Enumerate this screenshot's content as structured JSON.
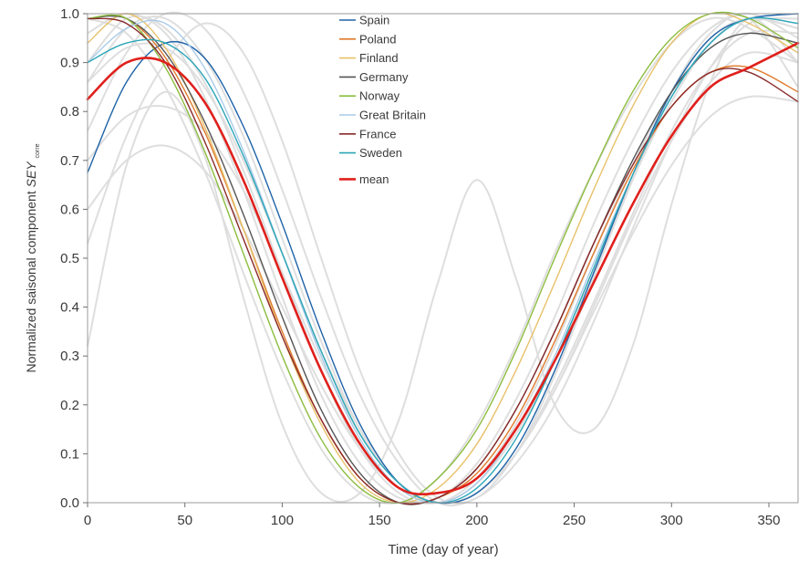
{
  "chart_data": {
    "type": "line",
    "title": "",
    "xlabel": "Time (day of year)",
    "ylabel_main": "Normalized saisonal component ",
    "ylabel_symbol": "SEY",
    "ylabel_subscript": "corre",
    "xlim": [
      0,
      365
    ],
    "ylim": [
      0.0,
      1.0
    ],
    "xticks": [
      0,
      50,
      100,
      150,
      200,
      250,
      300,
      350
    ],
    "yticks": [
      0.0,
      0.1,
      0.2,
      0.3,
      0.4,
      0.5,
      0.6,
      0.7,
      0.8,
      0.9,
      1.0
    ],
    "grid": false,
    "legend_position": "top-center",
    "series": [
      {
        "name": "Spain",
        "color": "#1f63a8",
        "x": [
          0,
          20,
          40,
          60,
          80,
          100,
          120,
          140,
          160,
          180,
          200,
          220,
          240,
          260,
          280,
          300,
          320,
          340,
          365
        ],
        "y": [
          0.675,
          0.86,
          0.94,
          0.91,
          0.77,
          0.57,
          0.35,
          0.16,
          0.04,
          0.0,
          0.02,
          0.11,
          0.27,
          0.47,
          0.67,
          0.84,
          0.95,
          0.99,
          1.0
        ]
      },
      {
        "name": "Poland",
        "color": "#e07a2b",
        "x": [
          0,
          20,
          40,
          60,
          80,
          100,
          120,
          140,
          160,
          180,
          200,
          220,
          240,
          260,
          280,
          300,
          320,
          340,
          365
        ],
        "y": [
          0.99,
          0.99,
          0.91,
          0.76,
          0.56,
          0.35,
          0.17,
          0.05,
          0.0,
          0.01,
          0.06,
          0.17,
          0.33,
          0.51,
          0.68,
          0.81,
          0.88,
          0.89,
          0.84
        ]
      },
      {
        "name": "Finland",
        "color": "#e8c16a",
        "x": [
          0,
          20,
          40,
          60,
          80,
          100,
          120,
          140,
          160,
          180,
          200,
          220,
          240,
          260,
          280,
          300,
          320,
          340,
          365
        ],
        "y": [
          0.94,
          1.0,
          0.93,
          0.77,
          0.56,
          0.34,
          0.16,
          0.04,
          0.0,
          0.03,
          0.12,
          0.27,
          0.45,
          0.64,
          0.81,
          0.94,
          1.0,
          0.98,
          0.92
        ]
      },
      {
        "name": "Germany",
        "color": "#555555",
        "x": [
          0,
          20,
          40,
          60,
          80,
          100,
          120,
          140,
          160,
          180,
          200,
          220,
          240,
          260,
          280,
          300,
          320,
          340,
          365
        ],
        "y": [
          0.99,
          0.99,
          0.92,
          0.78,
          0.59,
          0.38,
          0.19,
          0.06,
          0.0,
          0.01,
          0.07,
          0.19,
          0.35,
          0.53,
          0.7,
          0.84,
          0.93,
          0.96,
          0.94
        ]
      },
      {
        "name": "Norway",
        "color": "#8cbd3f",
        "x": [
          0,
          20,
          40,
          60,
          80,
          100,
          120,
          140,
          160,
          180,
          200,
          220,
          240,
          260,
          280,
          300,
          320,
          340,
          365
        ],
        "y": [
          0.99,
          0.99,
          0.89,
          0.72,
          0.51,
          0.3,
          0.13,
          0.03,
          0.0,
          0.05,
          0.15,
          0.31,
          0.5,
          0.68,
          0.84,
          0.95,
          1.0,
          0.99,
          0.93
        ]
      },
      {
        "name": "Great Britain",
        "color": "#a9cbe8",
        "x": [
          0,
          20,
          40,
          60,
          80,
          100,
          120,
          140,
          160,
          180,
          200,
          220,
          240,
          260,
          280,
          300,
          320,
          340,
          365
        ],
        "y": [
          0.9,
          0.97,
          0.98,
          0.89,
          0.72,
          0.51,
          0.3,
          0.13,
          0.03,
          0.0,
          0.04,
          0.15,
          0.3,
          0.49,
          0.67,
          0.83,
          0.94,
          0.99,
          0.98
        ]
      },
      {
        "name": "France",
        "color": "#8a2a2a",
        "x": [
          0,
          20,
          40,
          60,
          80,
          100,
          120,
          140,
          160,
          180,
          200,
          220,
          240,
          260,
          280,
          300,
          320,
          340,
          365
        ],
        "y": [
          0.99,
          0.98,
          0.9,
          0.74,
          0.54,
          0.34,
          0.17,
          0.05,
          0.0,
          0.01,
          0.07,
          0.19,
          0.35,
          0.53,
          0.69,
          0.81,
          0.88,
          0.88,
          0.82
        ]
      },
      {
        "name": "Sweden",
        "color": "#2aa6b8",
        "x": [
          0,
          20,
          40,
          60,
          80,
          100,
          120,
          140,
          160,
          180,
          200,
          220,
          240,
          260,
          280,
          300,
          320,
          340,
          365
        ],
        "y": [
          0.9,
          0.94,
          0.94,
          0.87,
          0.71,
          0.51,
          0.31,
          0.14,
          0.04,
          0.0,
          0.03,
          0.13,
          0.29,
          0.48,
          0.67,
          0.83,
          0.94,
          0.99,
          0.98
        ]
      },
      {
        "name": "mean",
        "color": "#e0201c",
        "x": [
          0,
          20,
          40,
          60,
          80,
          100,
          120,
          140,
          160,
          180,
          200,
          220,
          240,
          260,
          280,
          300,
          320,
          340,
          365
        ],
        "y": [
          0.825,
          0.9,
          0.9,
          0.82,
          0.66,
          0.46,
          0.27,
          0.12,
          0.03,
          0.02,
          0.05,
          0.15,
          0.29,
          0.45,
          0.61,
          0.75,
          0.85,
          0.89,
          0.94
        ]
      }
    ],
    "background_series": [
      {
        "color": "#dedede",
        "x": [
          0,
          20,
          40,
          60,
          80,
          100,
          120,
          140,
          160,
          180,
          200,
          220,
          240,
          260,
          280,
          300,
          320,
          340,
          365
        ],
        "y": [
          0.32,
          0.69,
          0.84,
          0.71,
          0.42,
          0.16,
          0.02,
          0.02,
          0.17,
          0.45,
          0.66,
          0.46,
          0.2,
          0.15,
          0.32,
          0.61,
          0.86,
          0.99,
          0.9
        ]
      },
      {
        "color": "#dedede",
        "x": [
          0,
          20,
          40,
          60,
          80,
          100,
          120,
          140,
          160,
          180,
          200,
          220,
          240,
          260,
          280,
          300,
          320,
          340,
          365
        ],
        "y": [
          0.6,
          0.7,
          0.73,
          0.68,
          0.56,
          0.4,
          0.24,
          0.11,
          0.03,
          0.0,
          0.02,
          0.1,
          0.23,
          0.39,
          0.55,
          0.69,
          0.79,
          0.83,
          0.82
        ]
      },
      {
        "color": "#dedede",
        "x": [
          0,
          20,
          40,
          60,
          80,
          100,
          120,
          140,
          160,
          180,
          200,
          220,
          240,
          260,
          280,
          300,
          320,
          340,
          365
        ],
        "y": [
          0.53,
          0.75,
          0.9,
          0.98,
          0.92,
          0.74,
          0.5,
          0.27,
          0.1,
          0.01,
          0.01,
          0.1,
          0.26,
          0.46,
          0.66,
          0.84,
          0.96,
          0.99,
          0.85
        ]
      },
      {
        "color": "#dedede",
        "x": [
          0,
          20,
          40,
          60,
          80,
          100,
          120,
          140,
          160,
          180,
          200,
          220,
          240,
          260,
          280,
          300,
          320,
          340,
          365
        ],
        "y": [
          0.76,
          0.92,
          1.0,
          0.97,
          0.84,
          0.64,
          0.42,
          0.22,
          0.08,
          0.0,
          0.01,
          0.08,
          0.2,
          0.37,
          0.56,
          0.74,
          0.89,
          0.98,
          0.99
        ]
      },
      {
        "color": "#dedede",
        "x": [
          0,
          20,
          40,
          60,
          80,
          100,
          120,
          140,
          160,
          180,
          200,
          220,
          240,
          260,
          280,
          300,
          320,
          340,
          365
        ],
        "y": [
          0.86,
          0.97,
          0.99,
          0.91,
          0.75,
          0.54,
          0.33,
          0.15,
          0.04,
          0.0,
          0.04,
          0.14,
          0.29,
          0.47,
          0.66,
          0.82,
          0.94,
          0.99,
          0.97
        ]
      },
      {
        "color": "#dedede",
        "x": [
          0,
          20,
          40,
          60,
          80,
          100,
          120,
          140,
          160,
          180,
          200,
          220,
          240,
          260,
          280,
          300,
          320,
          340,
          365
        ],
        "y": [
          0.96,
          1.0,
          0.96,
          0.83,
          0.64,
          0.42,
          0.22,
          0.08,
          0.01,
          0.01,
          0.08,
          0.21,
          0.38,
          0.57,
          0.74,
          0.88,
          0.97,
          1.0,
          0.95
        ]
      },
      {
        "color": "#dedede",
        "x": [
          0,
          20,
          40,
          60,
          80,
          100,
          120,
          140,
          160,
          180,
          200,
          220,
          240,
          260,
          280,
          300,
          320,
          340,
          365
        ],
        "y": [
          0.7,
          0.79,
          0.81,
          0.76,
          0.64,
          0.47,
          0.29,
          0.14,
          0.04,
          0.0,
          0.02,
          0.1,
          0.23,
          0.4,
          0.58,
          0.74,
          0.86,
          0.92,
          0.9
        ]
      },
      {
        "color": "#dedede",
        "x": [
          0,
          20,
          40,
          60,
          80,
          100,
          120,
          140,
          160,
          180,
          200,
          220,
          240,
          260,
          280,
          300,
          320,
          340,
          365
        ],
        "y": [
          0.86,
          0.93,
          0.93,
          0.85,
          0.7,
          0.51,
          0.31,
          0.15,
          0.04,
          0.0,
          0.02,
          0.1,
          0.24,
          0.41,
          0.59,
          0.76,
          0.89,
          0.96,
          0.96
        ]
      },
      {
        "color": "#dedede",
        "x": [
          0,
          20,
          40,
          60,
          80,
          100,
          120,
          140,
          160,
          180,
          200,
          220,
          240,
          260,
          280,
          300,
          320,
          340,
          365
        ],
        "y": [
          0.99,
          0.96,
          0.85,
          0.68,
          0.47,
          0.27,
          0.11,
          0.02,
          0.0,
          0.05,
          0.16,
          0.32,
          0.51,
          0.68,
          0.83,
          0.94,
          0.99,
          0.97,
          0.9
        ]
      },
      {
        "color": "#dedede",
        "x": [
          0,
          20,
          40,
          60,
          80,
          100,
          120,
          140,
          160,
          180,
          200,
          220,
          240,
          260,
          280,
          300,
          320,
          340,
          365
        ],
        "y": [
          0.9,
          0.99,
          0.97,
          0.86,
          0.68,
          0.47,
          0.27,
          0.11,
          0.02,
          0.0,
          0.05,
          0.16,
          0.32,
          0.51,
          0.69,
          0.84,
          0.95,
          0.99,
          0.97
        ]
      }
    ]
  }
}
